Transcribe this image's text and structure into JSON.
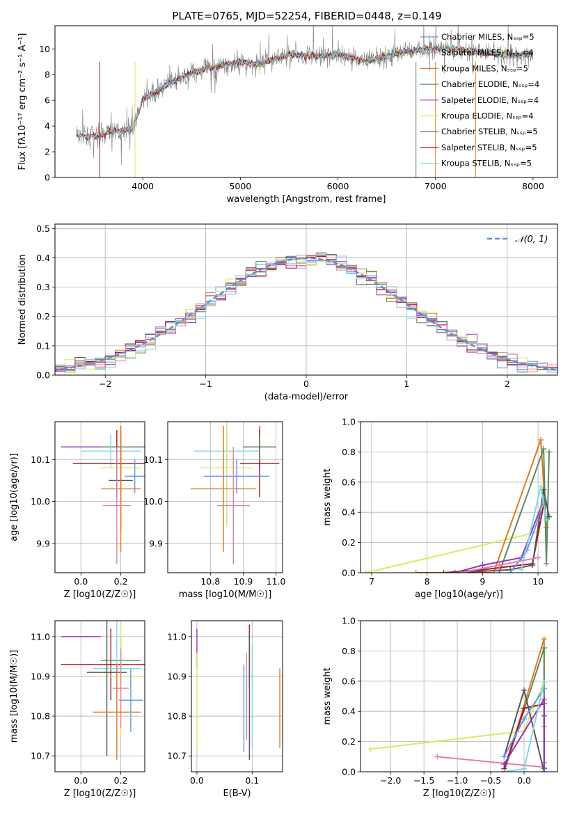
{
  "figure_title": "PLATE=0765, MJD=52254, FIBERID=0448, z=0.149",
  "colors": {
    "chabrier_miles": "#6495ed",
    "salpeter_miles": "#aaaaaa",
    "kroupa_miles": "#e07b20",
    "chabrier_elodie": "#5d8a5d",
    "salpeter_elodie": "#9b30c0",
    "kroupa_elodie": "#d4ec60",
    "chabrier_stelib": "#555555",
    "salpeter_stelib": "#b01020",
    "kroupa_stelib": "#80d8e0",
    "data": "#808080",
    "normal": "#5b8dd9",
    "pink": "#e080b0"
  },
  "chart_data": [
    {
      "id": "spectrum",
      "type": "line",
      "title": "PLATE=0765, MJD=52254, FIBERID=0448, z=0.149",
      "xlabel": "wavelength [Angstrom, rest frame]",
      "ylabel": "Flux [fλ10⁻¹⁷ erg cm⁻² s⁻¹ A⁻¹]",
      "xlim": [
        3100,
        8250
      ],
      "ylim": [
        0,
        11.8
      ],
      "xticks": [
        4000,
        5000,
        6000,
        7000,
        8000
      ],
      "yticks": [
        0,
        2,
        4,
        6,
        8,
        10
      ],
      "legend_position": "top-right",
      "legend": [
        "Chabrier MILES, N_SSP=5",
        "Salpeter MILES, N_SSP=4",
        "Kroupa MILES, N_SSP=5",
        "Chabrier ELODIE, N_SSP=4",
        "Salpeter ELODIE, N_SSP=4",
        "Kroupa ELODIE, N_SSP=4",
        "Chabrier STELIB, N_SSP=5",
        "Salpeter STELIB, N_SSP=5",
        "Kroupa STELIB, N_SSP=5"
      ],
      "continuum": {
        "x": [
          3300,
          3500,
          3700,
          3900,
          4000,
          4200,
          4500,
          4800,
          5000,
          5200,
          5500,
          5800,
          6000,
          6300,
          6600,
          6900,
          7200,
          7500,
          7800,
          8000
        ],
        "y": [
          3.3,
          3.2,
          3.6,
          3.8,
          6.0,
          7.0,
          8.2,
          8.7,
          9.0,
          8.8,
          9.6,
          9.4,
          9.6,
          9.0,
          9.7,
          10.0,
          10.0,
          9.7,
          9.5,
          9.6
        ]
      }
    },
    {
      "id": "residuals",
      "type": "step",
      "xlabel": "(data-model)/error",
      "ylabel": "Normed distribution",
      "xlim": [
        -2.5,
        2.5
      ],
      "ylim": [
        0,
        0.515
      ],
      "xticks": [
        -2,
        -1,
        0,
        1,
        2
      ],
      "yticks": [
        0.0,
        0.1,
        0.2,
        0.3,
        0.4,
        0.5
      ],
      "legend_position": "top-right",
      "normal_label": "𝒩(0, 1)",
      "bin_width": 0.1
    },
    {
      "id": "age_vs_z",
      "type": "errorbar",
      "xlabel": "Z [log10(Z/Z☉)]",
      "ylabel": "age  [log10(age/yr)]",
      "xlim": [
        -0.13,
        0.32
      ],
      "ylim": [
        9.83,
        10.19
      ],
      "xticks": [
        0.0,
        0.2
      ],
      "xtick_labels": [
        "0.0",
        "0.2"
      ],
      "yticks": [
        9.9,
        10.0,
        10.1
      ],
      "ytick_labels": [
        "9.9",
        "10.0",
        "10.1"
      ],
      "points": [
        {
          "color": "salpeter_elodie",
          "x": 0.2,
          "xerr": 0.3,
          "y": 10.13,
          "yerr": 0.05
        },
        {
          "color": "chabrier_elodie",
          "x": 0.2,
          "xerr": 0.1,
          "y": 10.13,
          "yerr": 0.03
        },
        {
          "color": "kroupa_stelib",
          "x": 0.15,
          "xerr": 0.15,
          "y": 10.12,
          "yerr": 0.04
        },
        {
          "color": "salpeter_stelib",
          "x": 0.18,
          "xerr": 0.22,
          "y": 10.09,
          "yerr": 0.08
        },
        {
          "color": "kroupa_elodie",
          "x": 0.2,
          "xerr": 0.1,
          "y": 10.08,
          "yerr": 0.14
        },
        {
          "color": "chabrier_miles",
          "x": 0.27,
          "xerr": 0.05,
          "y": 10.06,
          "yerr": 0.04
        },
        {
          "color": "chabrier_stelib",
          "x": 0.2,
          "xerr": 0.06,
          "y": 10.05,
          "yerr": 0.12
        },
        {
          "color": "kroupa_miles",
          "x": 0.2,
          "xerr": 0.1,
          "y": 10.03,
          "yerr": 0.15
        },
        {
          "color": "pink",
          "x": 0.18,
          "xerr": 0.07,
          "y": 9.99,
          "yerr": 0.14
        }
      ]
    },
    {
      "id": "age_vs_mass",
      "type": "errorbar",
      "xlabel": "mass [log10(M/M☉)]",
      "xlim": [
        10.67,
        11.02
      ],
      "ylim": [
        9.83,
        10.19
      ],
      "xticks": [
        10.8,
        10.9,
        11.0
      ],
      "xtick_labels": [
        "10.8",
        "10.9",
        "11.0"
      ],
      "yticks": [
        9.9,
        10.0,
        10.1
      ],
      "ytick_labels": [
        "9.9",
        "10.0",
        "10.1"
      ],
      "points": [
        {
          "color": "kroupa_stelib",
          "x": 10.85,
          "xerr": 0.1,
          "y": 10.12,
          "yerr": 0.04
        },
        {
          "color": "salpeter_elodie",
          "x": 10.95,
          "xerr": 0.05,
          "y": 10.13,
          "yerr": 0.05
        },
        {
          "color": "salpeter_stelib",
          "x": 10.95,
          "xerr": 0.06,
          "y": 10.09,
          "yerr": 0.08
        },
        {
          "color": "kroupa_elodie",
          "x": 10.85,
          "xerr": 0.08,
          "y": 10.08,
          "yerr": 0.14
        },
        {
          "color": "chabrier_miles",
          "x": 10.88,
          "xerr": 0.1,
          "y": 10.06,
          "yerr": 0.04
        },
        {
          "color": "kroupa_miles",
          "x": 10.84,
          "xerr": 0.1,
          "y": 10.03,
          "yerr": 0.15
        },
        {
          "color": "pink",
          "x": 10.87,
          "xerr": 0.05,
          "y": 9.99,
          "yerr": 0.14
        },
        {
          "color": "chabrier_elodie",
          "x": 10.95,
          "xerr": 0.05,
          "y": 10.13,
          "yerr": 0.03
        }
      ]
    },
    {
      "id": "weight_vs_age",
      "type": "line",
      "xlabel": "age  [log10(age/yr)]",
      "ylabel": "mass weight",
      "xlim": [
        6.8,
        10.35
      ],
      "ylim": [
        0,
        1.0
      ],
      "xticks": [
        7,
        8,
        9,
        10
      ],
      "xtick_labels": [
        "7",
        "8",
        "9",
        "10"
      ],
      "yticks": [
        0.0,
        0.2,
        0.4,
        0.6,
        0.8,
        1.0
      ],
      "ytick_labels": [
        "0.0",
        "0.2",
        "0.4",
        "0.6",
        "0.8",
        "1.0"
      ],
      "series": [
        {
          "color": "kroupa_elodie",
          "x": [
            6.9,
            10.0,
            10.1
          ],
          "y": [
            0.0,
            0.27,
            0.6
          ]
        },
        {
          "color": "kroupa_miles",
          "x": [
            7.8,
            9.2,
            10.05,
            10.15
          ],
          "y": [
            0.0,
            0.0,
            0.88,
            0.3
          ]
        },
        {
          "color": "chabrier_elodie",
          "x": [
            9.3,
            10.1,
            10.15,
            10.2
          ],
          "y": [
            0.0,
            0.82,
            0.06,
            0.8
          ]
        },
        {
          "color": "salpeter_elodie",
          "x": [
            8.5,
            9.0,
            9.7,
            10.1
          ],
          "y": [
            0.0,
            0.05,
            0.1,
            0.48
          ]
        },
        {
          "color": "salpeter_stelib",
          "x": [
            8.3,
            9.0,
            9.9,
            10.1
          ],
          "y": [
            0.0,
            0.02,
            0.06,
            0.45
          ]
        },
        {
          "color": "chabrier_stelib",
          "x": [
            8.5,
            9.5,
            9.9,
            10.1,
            10.2
          ],
          "y": [
            0.0,
            0.02,
            0.05,
            0.55,
            0.37
          ]
        },
        {
          "color": "chabrier_miles",
          "x": [
            9.5,
            9.8,
            10.0,
            10.1
          ],
          "y": [
            0.0,
            0.15,
            0.35,
            0.5
          ]
        },
        {
          "color": "kroupa_stelib",
          "x": [
            9.7,
            10.05,
            10.15
          ],
          "y": [
            0.02,
            0.57,
            0.35
          ]
        },
        {
          "color": "pink",
          "x": [
            8.6,
            9.3,
            10.0
          ],
          "y": [
            0.0,
            0.05,
            0.1
          ]
        }
      ]
    },
    {
      "id": "mass_vs_z",
      "type": "errorbar",
      "xlabel": "Z [log10(Z/Z☉)]",
      "ylabel": "mass [log10(M/M☉)]",
      "xlim": [
        -0.13,
        0.32
      ],
      "ylim": [
        10.66,
        11.04
      ],
      "xticks": [
        0.0,
        0.2
      ],
      "xtick_labels": [
        "0.0",
        "0.2"
      ],
      "yticks": [
        10.7,
        10.8,
        10.9,
        11.0
      ],
      "ytick_labels": [
        "10.7",
        "10.8",
        "10.9",
        "11.0"
      ],
      "points": [
        {
          "color": "salpeter_elodie",
          "x": 0.0,
          "xerr": 0.1,
          "y": 11.0,
          "yerr": 0.0
        },
        {
          "color": "salpeter_stelib",
          "x": 0.15,
          "xerr": 0.25,
          "y": 10.93,
          "yerr": 0.09
        },
        {
          "color": "chabrier_elodie",
          "x": 0.2,
          "xerr": 0.1,
          "y": 10.94,
          "yerr": 0.06
        },
        {
          "color": "kroupa_stelib",
          "x": 0.18,
          "xerr": 0.12,
          "y": 10.92,
          "yerr": 0.12
        },
        {
          "color": "kroupa_elodie",
          "x": 0.2,
          "xerr": 0.1,
          "y": 10.9,
          "yerr": 0.15
        },
        {
          "color": "chabrier_stelib",
          "x": 0.13,
          "xerr": 0.1,
          "y": 10.91,
          "yerr": 0.21
        },
        {
          "color": "pink",
          "x": 0.2,
          "xerr": 0.04,
          "y": 10.87,
          "yerr": 0.1
        },
        {
          "color": "chabrier_miles",
          "x": 0.25,
          "xerr": 0.06,
          "y": 10.84,
          "yerr": 0.08
        },
        {
          "color": "kroupa_miles",
          "x": 0.18,
          "xerr": 0.12,
          "y": 10.81,
          "yerr": 0.12
        }
      ]
    },
    {
      "id": "mass_vs_ebv",
      "type": "errorbar",
      "xlabel": "E(B-V)",
      "xlim": [
        -0.01,
        0.155
      ],
      "ylim": [
        10.66,
        11.04
      ],
      "xticks": [
        0.0,
        0.1
      ],
      "xtick_labels": [
        "0.0",
        "0.1"
      ],
      "yticks": [
        10.7,
        10.8,
        10.9,
        11.0
      ],
      "ytick_labels": [
        "10.7",
        "10.8",
        "10.9",
        "11.0"
      ],
      "points": [
        {
          "color": "salpeter_elodie",
          "x": 0.0,
          "y": 10.97,
          "yerr": 0.05
        },
        {
          "color": "kroupa_elodie",
          "x": 0.0,
          "y": 10.84,
          "yerr": 0.12
        },
        {
          "color": "chabrier_miles",
          "x": 0.085,
          "y": 10.82,
          "yerr": 0.11
        },
        {
          "color": "pink",
          "x": 0.09,
          "y": 10.85,
          "yerr": 0.11
        },
        {
          "color": "salpeter_stelib",
          "x": 0.095,
          "y": 10.95,
          "yerr": 0.08
        },
        {
          "color": "chabrier_stelib",
          "x": 0.095,
          "y": 10.85,
          "yerr": 0.16
        },
        {
          "color": "kroupa_stelib",
          "x": 0.1,
          "y": 10.85,
          "yerr": 0.13
        },
        {
          "color": "kroupa_miles",
          "x": 0.15,
          "y": 10.82,
          "yerr": 0.1
        }
      ]
    },
    {
      "id": "weight_vs_z",
      "type": "line",
      "xlabel": "Z [log10(Z/Z☉)]",
      "ylabel": "mass weight",
      "xlim": [
        -2.45,
        0.5
      ],
      "ylim": [
        0,
        1.0
      ],
      "xticks": [
        -2.0,
        -1.5,
        -1.0,
        -0.5,
        0.0
      ],
      "xtick_labels": [
        "−2.0",
        "−1.5",
        "−1.0",
        "−0.5",
        "0.0"
      ],
      "yticks": [
        0.0,
        0.2,
        0.4,
        0.6,
        0.8,
        1.0
      ],
      "ytick_labels": [
        "0.0",
        "0.2",
        "0.4",
        "0.6",
        "0.8",
        "1.0"
      ],
      "series": [
        {
          "color": "kroupa_elodie",
          "x": [
            -2.3,
            0.0,
            0.3
          ],
          "y": [
            0.15,
            0.27,
            0.6
          ]
        },
        {
          "color": "pink",
          "x": [
            -1.3,
            0.3
          ],
          "y": [
            0.1,
            0.03
          ]
        },
        {
          "color": "kroupa_miles",
          "x": [
            -0.3,
            0.3,
            0.3
          ],
          "y": [
            0.0,
            0.88,
            0.3
          ]
        },
        {
          "color": "chabrier_elodie",
          "x": [
            -0.3,
            0.3,
            0.3
          ],
          "y": [
            0.0,
            0.82,
            0.06
          ]
        },
        {
          "color": "chabrier_stelib",
          "x": [
            -0.3,
            0.0,
            0.3,
            0.3
          ],
          "y": [
            0.1,
            0.54,
            0.0,
            0.37
          ]
        },
        {
          "color": "salpeter_stelib",
          "x": [
            -0.3,
            0.0,
            0.3
          ],
          "y": [
            0.02,
            0.42,
            0.45
          ]
        },
        {
          "color": "salpeter_elodie",
          "x": [
            -0.3,
            0.3,
            0.3
          ],
          "y": [
            0.05,
            0.48,
            0.02
          ]
        },
        {
          "color": "chabrier_miles",
          "x": [
            -0.3,
            0.0,
            0.3
          ],
          "y": [
            0.1,
            0.35,
            0.55
          ]
        },
        {
          "color": "kroupa_stelib",
          "x": [
            -0.3,
            0.0,
            0.3
          ],
          "y": [
            0.0,
            0.02,
            0.59
          ]
        }
      ]
    }
  ]
}
